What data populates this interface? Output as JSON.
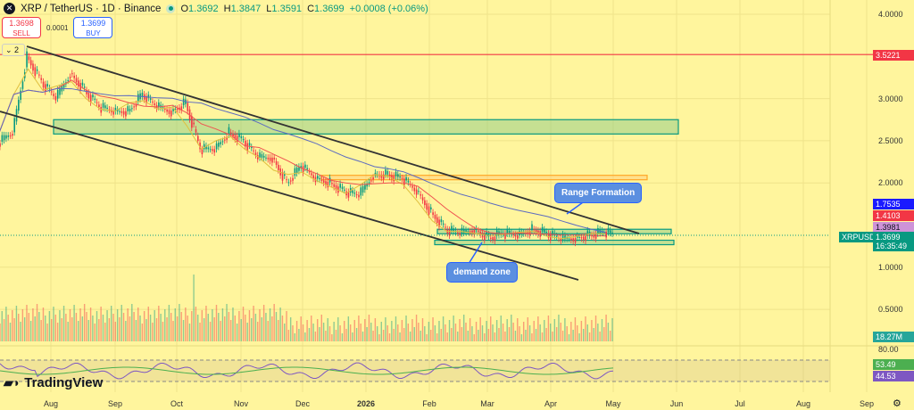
{
  "header": {
    "symbol": "XRP / TetherUS · 1D · Binance",
    "icon": "xrp-logo-icon",
    "ohlc": [
      {
        "k": "O",
        "v": "1.3692"
      },
      {
        "k": "H",
        "v": "1.3847"
      },
      {
        "k": "L",
        "v": "1.3591"
      },
      {
        "k": "C",
        "v": "1.3699"
      }
    ],
    "change": "+0.0008 (+0.06%)"
  },
  "trade": {
    "sell_price": "1.3698",
    "sell_label": "SELL",
    "spread": "0.0001",
    "buy_price": "1.3699",
    "buy_label": "BUY"
  },
  "indicators_collapse": "2",
  "price_axis": [
    "4.0000",
    "3.0000",
    "2.5000",
    "2.0000",
    "1.0000",
    "0.5000"
  ],
  "rsi_axis": "80.00",
  "tags": {
    "hline": "3.5221",
    "ma_blue": "1.7535",
    "ma_red": "1.4103",
    "ma_purple": "1.3981",
    "symbol": "XRPUSDT",
    "last": "1.3699",
    "countdown": "16:35:49",
    "volume": "18.27M",
    "rsi1": "53.49",
    "rsi2": "44.53"
  },
  "time_axis": [
    "Aug",
    "Sep",
    "Oct",
    "Nov",
    "Dec",
    "2026",
    "Feb",
    "Mar",
    "Apr",
    "May",
    "Jun",
    "Jul",
    "Aug",
    "Sep"
  ],
  "annotations": {
    "range": "Range Formation",
    "demand": "demand zone"
  },
  "branding": "TradingView",
  "colors": {
    "background": "#fff59d",
    "up": "#089981",
    "down": "#f23645",
    "hline": "#f23645",
    "zone": "#81c784",
    "orange_zone": "#ffa726",
    "ma_blue": "#5c6bc0",
    "ma_red": "#ef5350",
    "ma_yellow": "#e0c040"
  },
  "chart_data": {
    "type": "candlestick",
    "interval": "weekly approximation of 1D",
    "x": [
      "2025-07-07",
      "2025-07-14",
      "2025-07-21",
      "2025-07-28",
      "2025-08-04",
      "2025-08-11",
      "2025-08-18",
      "2025-08-25",
      "2025-09-01",
      "2025-09-08",
      "2025-09-15",
      "2025-09-22",
      "2025-09-29",
      "2025-10-06",
      "2025-10-13",
      "2025-10-20",
      "2025-10-27",
      "2025-11-03",
      "2025-11-10",
      "2025-11-17",
      "2025-11-24",
      "2025-12-01",
      "2025-12-08",
      "2025-12-15",
      "2025-12-22",
      "2025-12-29",
      "2026-01-05",
      "2026-01-12",
      "2026-01-19",
      "2026-01-26",
      "2026-02-02",
      "2026-02-09",
      "2026-02-16",
      "2026-02-23",
      "2026-03-02",
      "2026-03-09",
      "2026-03-16",
      "2026-03-23",
      "2026-03-30",
      "2026-04-06",
      "2026-04-13",
      "2026-04-20",
      "2026-04-27"
    ],
    "close": [
      2.6,
      3.5,
      3.2,
      3.0,
      3.3,
      3.1,
      2.9,
      2.85,
      2.85,
      3.05,
      2.9,
      2.85,
      2.95,
      2.4,
      2.4,
      2.6,
      2.5,
      2.3,
      2.3,
      2.0,
      2.2,
      2.05,
      2.0,
      1.9,
      1.85,
      2.1,
      2.1,
      2.05,
      1.9,
      1.65,
      1.45,
      1.4,
      1.45,
      1.35,
      1.4,
      1.38,
      1.45,
      1.4,
      1.33,
      1.35,
      1.38,
      1.42,
      1.37
    ],
    "ylim": [
      0,
      4.2
    ],
    "scale": "linear",
    "grid": true,
    "horizontal_line": 3.5221,
    "zones": [
      [
        2.58,
        2.75
      ],
      [
        2.04,
        2.09
      ],
      [
        1.4,
        1.45
      ],
      [
        1.28,
        1.32
      ]
    ]
  }
}
